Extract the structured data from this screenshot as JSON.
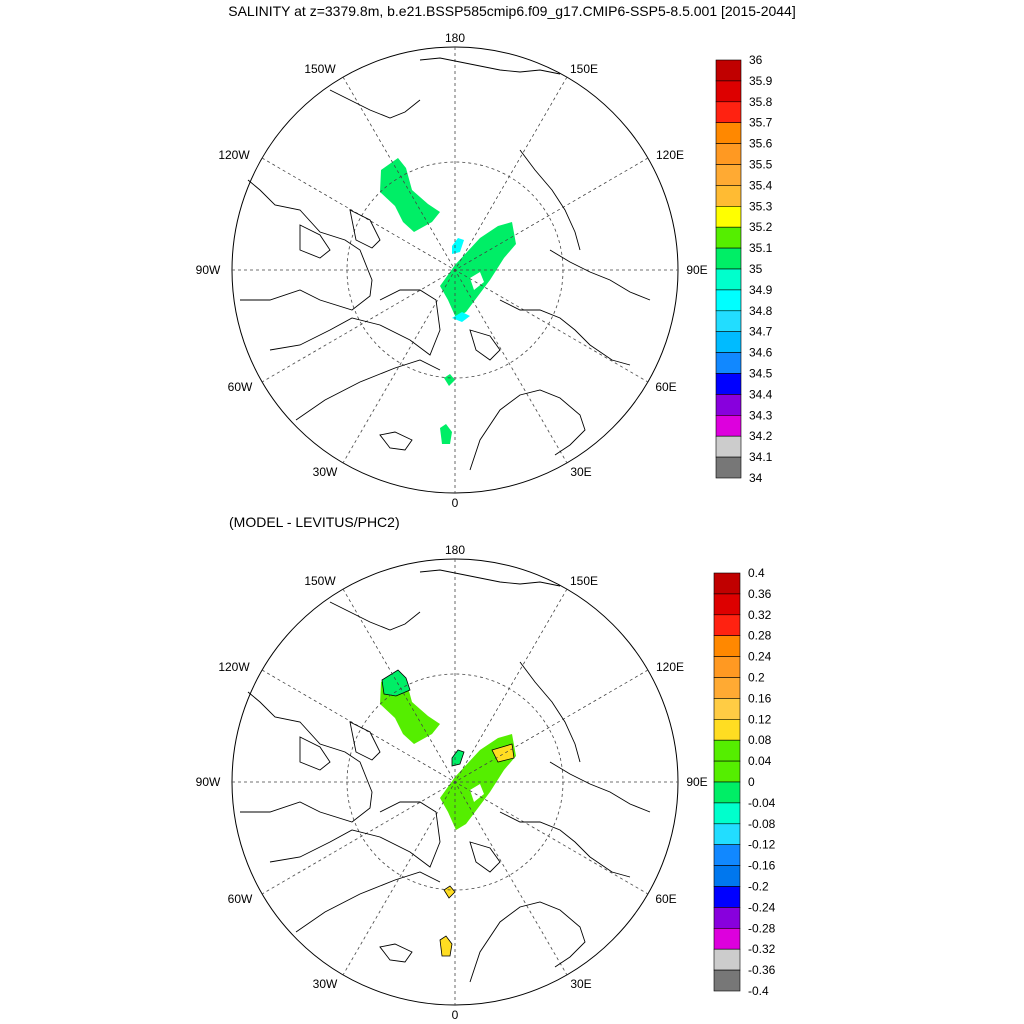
{
  "figure": {
    "title": "SALINITY at z=3379.8m, b.e21.BSSP585cmip6.f09_g17.CMIP6-SSP5-8.5.001 [2015-2044]",
    "subtitle": "(MODEL - LEVITUS/PHC2)"
  },
  "map_labels": {
    "lon_180": "180",
    "lon_150W": "150W",
    "lon_150E": "150E",
    "lon_120W": "120W",
    "lon_120E": "120E",
    "lon_90W": "90W",
    "lon_90E": "90E",
    "lon_60W": "60W",
    "lon_60E": "60E",
    "lon_30W": "30W",
    "lon_30E": "30E",
    "lon_0": "0"
  },
  "top_colorbar": {
    "labels": [
      "36",
      "35.9",
      "35.8",
      "35.7",
      "35.6",
      "35.5",
      "35.4",
      "35.3",
      "35.2",
      "35.1",
      "35",
      "34.9",
      "34.8",
      "34.7",
      "34.6",
      "34.5",
      "34.4",
      "34.3",
      "34.2",
      "34.1",
      "34"
    ],
    "colors": [
      "#c00000",
      "#dd0000",
      "#ff2211",
      "#ff8800",
      "#ff9922",
      "#ffaa33",
      "#ffbb33",
      "#ffff00",
      "#55ee00",
      "#00ee66",
      "#00ffcc",
      "#00ffff",
      "#22ddff",
      "#00bbff",
      "#1188ff",
      "#0000ff",
      "#8800dd",
      "#dd00dd",
      "#cccccc",
      "#777777"
    ]
  },
  "bottom_colorbar": {
    "labels": [
      "0.4",
      "0.36",
      "0.32",
      "0.28",
      "0.24",
      "0.2",
      "0.16",
      "0.12",
      "0.08",
      "0.04",
      "0",
      "-0.04",
      "-0.08",
      "-0.12",
      "-0.16",
      "-0.2",
      "-0.24",
      "-0.28",
      "-0.32",
      "-0.36",
      "-0.4"
    ],
    "colors": [
      "#c00000",
      "#dd0000",
      "#ff2211",
      "#ff8800",
      "#ff9922",
      "#ffaa33",
      "#ffcc44",
      "#ffdd22",
      "#55ee00",
      "#55ee00",
      "#00ee66",
      "#00ffcc",
      "#22ddff",
      "#1188ff",
      "#0077ee",
      "#0000ff",
      "#8800dd",
      "#dd00dd",
      "#cccccc",
      "#777777"
    ]
  },
  "field_colors": {
    "top_primary": "#00ee66",
    "top_secondary": "#00ffff",
    "bottom_green": "#55ee00",
    "bottom_zero": "#00ee66",
    "bottom_yellow": "#ffdd22"
  }
}
